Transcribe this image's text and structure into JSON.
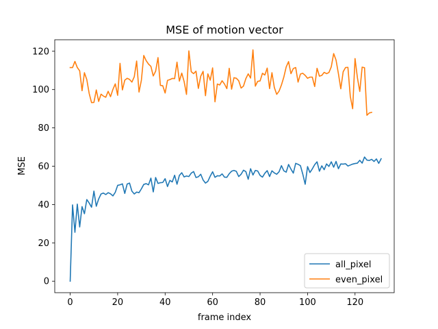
{
  "chart_data": {
    "type": "line",
    "title": "MSE of motion vector",
    "xlabel": "frame index",
    "ylabel": "MSE",
    "xlim": [
      -6.5,
      136.5
    ],
    "ylim": [
      -6,
      126
    ],
    "xticks": [
      0,
      20,
      40,
      60,
      80,
      100,
      120
    ],
    "yticks": [
      0,
      20,
      40,
      60,
      80,
      100,
      120
    ],
    "grid": false,
    "legend_position": "lower-right",
    "series": [
      {
        "name": "all_pixel",
        "color": "#1f77b4",
        "values": [
          0,
          39.8,
          25.5,
          40.2,
          28.3,
          38.9,
          35.2,
          42.6,
          40.8,
          38.6,
          47,
          39.1,
          42.9,
          45.5,
          46,
          45.2,
          46.2,
          45.6,
          44.5,
          46.4,
          50,
          50.3,
          50.8,
          45.8,
          50.7,
          51.2,
          47,
          45.5,
          46.5,
          46.2,
          48.2,
          50.5,
          50.9,
          50.3,
          53.8,
          46.6,
          54.1,
          51,
          51.4,
          51.5,
          53.5,
          49.4,
          52.6,
          51.8,
          55.3,
          50.6,
          55.2,
          56.6,
          54.4,
          54.9,
          54.6,
          56.4,
          57.2,
          54.1,
          54.5,
          55.8,
          52.8,
          51.2,
          52.1,
          54.8,
          57.1,
          54.2,
          55,
          54.9,
          56,
          54.3,
          54.2,
          56.1,
          57.4,
          57.8,
          57.3,
          54.6,
          55.8,
          57.9,
          57.2,
          53.2,
          58.7,
          55.4,
          57.8,
          57.5,
          55.2,
          54.3,
          56.3,
          57.7,
          54.6,
          57.6,
          56.5,
          55.8,
          57.1,
          60.3,
          57.6,
          56.9,
          60.9,
          58.5,
          56.4,
          61.5,
          61,
          60.3,
          55.8,
          50.6,
          59.8,
          56.7,
          58.6,
          60.8,
          62.3,
          57.4,
          60.2,
          58.2,
          61.2,
          59.9,
          62.3,
          59.5,
          62.5,
          58.7,
          61.2,
          61.1,
          61.3,
          60.1,
          60.6,
          61.1,
          61.4,
          61.6,
          63.1,
          61.6,
          64.8,
          63.2,
          63,
          63.6,
          62.5,
          63.8,
          61.5,
          63.9
        ]
      },
      {
        "name": "even_pixel",
        "color": "#ff7f0e",
        "values": [
          111.5,
          111.5,
          114.7,
          111.5,
          109.8,
          99.4,
          108.8,
          105.2,
          98,
          93.2,
          93.3,
          99.8,
          93.8,
          97.6,
          96.6,
          96,
          99.1,
          96.3,
          100.1,
          103,
          97,
          113.7,
          99.8,
          104.9,
          105.9,
          105.3,
          103.9,
          106.7,
          114.9,
          98.7,
          104.9,
          117.8,
          115.1,
          113.3,
          112.1,
          107.1,
          109.6,
          116.7,
          102.2,
          102,
          98.2,
          104.8,
          105.2,
          105.8,
          105.7,
          114.3,
          104.4,
          108.6,
          104.2,
          97.5,
          120.2,
          109.3,
          108.3,
          109.6,
          100.6,
          107,
          109.5,
          96.8,
          108.2,
          104.9,
          111.3,
          93.6,
          102.9,
          102.4,
          104.6,
          102.9,
          100.5,
          111.1,
          100.2,
          106.2,
          105.9,
          104.6,
          100.8,
          101.8,
          105.7,
          108.2,
          106,
          120.7,
          101.8,
          104.3,
          104.5,
          108.5,
          107.6,
          111.2,
          100.5,
          108.8,
          101.1,
          97.5,
          99.2,
          102.4,
          106.5,
          111.8,
          114.6,
          108.3,
          111,
          111.5,
          103.9,
          108.1,
          108.5,
          107.4,
          105.9,
          106.5,
          106.5,
          101.6,
          111.1,
          107,
          107.4,
          109,
          108.3,
          108.9,
          111.9,
          118.8,
          115.4,
          108.3,
          100.4,
          109.3,
          111.5,
          111.6,
          96.5,
          90,
          116.2,
          106.2,
          99,
          111.7,
          111.4,
          86.6,
          87.8,
          88.1
        ]
      }
    ]
  }
}
